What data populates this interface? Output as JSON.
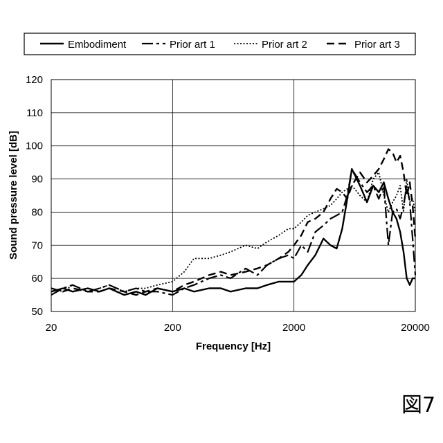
{
  "figure_label": "図7",
  "chart_data": {
    "type": "line",
    "xscale": "log",
    "xlabel": "Frequency [Hz]",
    "ylabel": "Sound pressure level [dB]",
    "xlim": [
      20,
      20000
    ],
    "ylim": [
      50,
      120
    ],
    "xticks": [
      20,
      200,
      2000,
      20000
    ],
    "xtick_labels": [
      "20",
      "200",
      "2000",
      "20000"
    ],
    "yticks": [
      50,
      60,
      70,
      80,
      90,
      100,
      110,
      120
    ],
    "ytick_labels": [
      "50",
      "60",
      "70",
      "80",
      "90",
      "100",
      "110",
      "120"
    ],
    "grid": true,
    "legend_position": "top",
    "series": [
      {
        "name": "Embodiment",
        "style": "solid",
        "x": [
          20,
          25,
          30,
          40,
          50,
          60,
          80,
          100,
          120,
          150,
          200,
          250,
          300,
          400,
          500,
          600,
          800,
          1000,
          1200,
          1500,
          1800,
          2000,
          2300,
          2600,
          3000,
          3500,
          4000,
          4500,
          5000,
          5500,
          6000,
          7000,
          8000,
          9000,
          10000,
          11000,
          12000,
          13000,
          14000,
          15000,
          16000,
          17000,
          18000,
          19000,
          20000
        ],
        "values": [
          56,
          57,
          56,
          57,
          56,
          57,
          55,
          56,
          55,
          57,
          56,
          57,
          56,
          57,
          57,
          56,
          57,
          57,
          58,
          59,
          59,
          59,
          61,
          64,
          67,
          72,
          70,
          69,
          75,
          84,
          93,
          88,
          83,
          88,
          86,
          89,
          84,
          80,
          78,
          74,
          68,
          60,
          58,
          60,
          60
        ]
      },
      {
        "name": "Prior art 1",
        "style": "long-dash",
        "x": [
          20,
          25,
          30,
          40,
          50,
          60,
          80,
          100,
          120,
          150,
          200,
          250,
          300,
          400,
          500,
          600,
          800,
          1000,
          1200,
          1500,
          1800,
          2000,
          2300,
          2600,
          3000,
          3500,
          4000,
          4500,
          5000,
          5500,
          6000,
          7000,
          8000,
          9000,
          10000,
          11000,
          12000,
          13000,
          14000,
          15000,
          16000,
          17000,
          18000,
          19000,
          20000
        ],
        "values": [
          55,
          57,
          58,
          56,
          57,
          58,
          56,
          57,
          56,
          56,
          55,
          57,
          58,
          60,
          61,
          60,
          63,
          61,
          64,
          66,
          67,
          66,
          70,
          68,
          74,
          76,
          78,
          79,
          80,
          85,
          93,
          89,
          86,
          88,
          84,
          88,
          70,
          80,
          81,
          78,
          82,
          88,
          83,
          72,
          61
        ]
      },
      {
        "name": "Prior art 2",
        "style": "dotted",
        "x": [
          20,
          25,
          30,
          40,
          50,
          60,
          80,
          100,
          120,
          150,
          200,
          250,
          300,
          400,
          500,
          600,
          800,
          1000,
          1200,
          1500,
          1800,
          2000,
          2300,
          2600,
          3000,
          3500,
          4000,
          4500,
          5000,
          5500,
          6000,
          7000,
          8000,
          9000,
          10000,
          11000,
          12000,
          13000,
          14000,
          15000,
          16000,
          17000,
          18000,
          19000,
          20000
        ],
        "values": [
          57,
          56,
          58,
          56,
          57,
          58,
          56,
          57,
          57,
          58,
          59,
          62,
          66,
          66,
          67,
          68,
          70,
          69,
          71,
          73,
          75,
          75,
          77,
          79,
          80,
          81,
          82,
          84,
          86,
          87,
          88,
          85,
          83,
          90,
          92,
          85,
          80,
          83,
          85,
          88,
          80,
          90,
          83,
          84,
          80
        ]
      },
      {
        "name": "Prior art 3",
        "style": "dash",
        "x": [
          20,
          25,
          30,
          40,
          50,
          60,
          80,
          100,
          120,
          150,
          200,
          250,
          300,
          400,
          500,
          600,
          800,
          1000,
          1200,
          1500,
          1800,
          2000,
          2300,
          2600,
          3000,
          3500,
          4000,
          4500,
          5000,
          5500,
          6000,
          7000,
          8000,
          9000,
          10000,
          11000,
          12000,
          13000,
          14000,
          15000,
          16000,
          17000,
          18000,
          19000,
          20000
        ],
        "values": [
          57,
          56,
          57,
          56,
          56,
          57,
          56,
          55,
          56,
          57,
          56,
          58,
          59,
          61,
          62,
          61,
          62,
          63,
          64,
          66,
          68,
          70,
          73,
          77,
          78,
          80,
          84,
          87,
          86,
          84,
          88,
          92,
          89,
          91,
          93,
          96,
          99,
          98,
          95,
          97,
          92,
          85,
          89,
          82,
          72
        ]
      }
    ]
  }
}
